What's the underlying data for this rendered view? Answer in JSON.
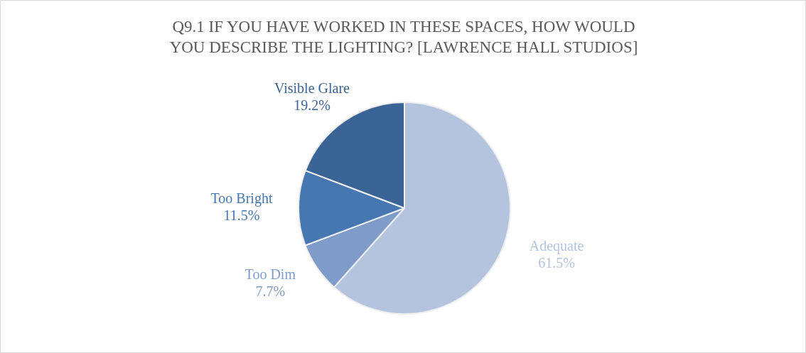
{
  "chart_data": {
    "type": "pie",
    "title": "Q9.1 IF YOU HAVE WORKED IN THESE SPACES, HOW WOULD YOU DESCRIBE THE LIGHTING? [LAWRENCE HALL STUDIOS]",
    "categories": [
      "Adequate",
      "Too Dim",
      "Too Bright",
      "Visible Glare"
    ],
    "values": [
      61.5,
      7.7,
      11.5,
      19.2
    ],
    "colors": [
      "#b4c3de",
      "#7f9bc9",
      "#4677b0",
      "#3b6496"
    ],
    "value_labels": [
      "61.5%",
      "7.7%",
      "11.5%",
      "19.2%"
    ],
    "legend": false
  }
}
